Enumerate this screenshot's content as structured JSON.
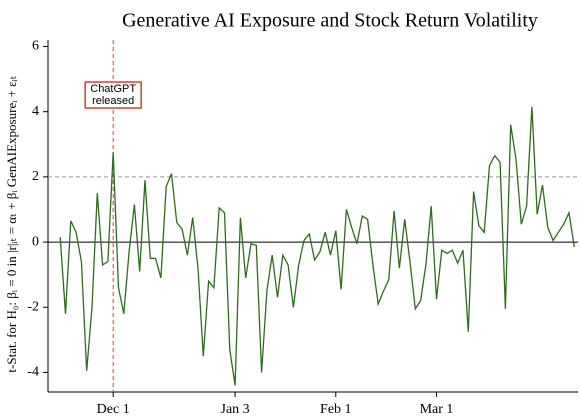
{
  "chart_data": {
    "type": "line",
    "title": "Generative AI Exposure and Stock Return Volatility",
    "y_label": "t-Stat. for H₀: βᵢ = 0  in  |r|ᵢₜ = αₜ + βᵢ GenAIExposureᵢ + εᵢₜ",
    "x": [
      0,
      1,
      2,
      3,
      4,
      5,
      6,
      7,
      8,
      9,
      10,
      11,
      12,
      13,
      14,
      15,
      16,
      17,
      18,
      19,
      20,
      21,
      22,
      23,
      24,
      25,
      26,
      27,
      28,
      29,
      30,
      31,
      32,
      33,
      34,
      35,
      36,
      37,
      38,
      39,
      40,
      41,
      42,
      43,
      44,
      45,
      46,
      47,
      48,
      49,
      50,
      51,
      52,
      53,
      54,
      55,
      56,
      57,
      58,
      59,
      60,
      61,
      62,
      63,
      64,
      65,
      66,
      67,
      68,
      69,
      70,
      71,
      72,
      73,
      74,
      75,
      76,
      77,
      78,
      79,
      80,
      81,
      82,
      83,
      84,
      85,
      86,
      87,
      88,
      89,
      90,
      91,
      92,
      93,
      94,
      95,
      96,
      97
    ],
    "series": [
      {
        "color": "#2f6b1e",
        "values": [
          0.15,
          -2.2,
          0.65,
          0.3,
          -0.6,
          -3.95,
          -2,
          1.5,
          -0.7,
          -0.6,
          2.75,
          -1.4,
          -2.2,
          -0.3,
          1.15,
          -0.9,
          1.9,
          -0.5,
          -0.5,
          -1.1,
          1.7,
          2.1,
          0.6,
          0.4,
          -0.4,
          0.75,
          -0.8,
          -3.5,
          -1.2,
          -1.4,
          1.05,
          0.9,
          -3.3,
          -4.4,
          0.75,
          -1.1,
          -0.05,
          -0.1,
          -4.0,
          -1.5,
          -0.4,
          -1.7,
          -0.4,
          -0.7,
          -2.0,
          -0.7,
          0.05,
          0.25,
          -0.55,
          -0.3,
          0.3,
          -0.4,
          0.35,
          -1.45,
          1.0,
          0.45,
          -0.05,
          0.8,
          0.7,
          -0.7,
          -1.9,
          -1.5,
          -1.15,
          0.95,
          -0.8,
          0.7,
          -0.6,
          -2.05,
          -1.8,
          -0.7,
          1.1,
          -1.75,
          -0.25,
          -0.35,
          -0.25,
          -0.65,
          -0.25,
          -2.75,
          1.55,
          0.5,
          0.3,
          2.35,
          2.65,
          2.45,
          -2.05,
          3.6,
          2.55,
          0.55,
          1.1,
          4.15,
          0.85,
          1.75,
          0.45,
          0.05,
          0.3,
          0.55,
          0.9,
          -0.15
        ]
      }
    ],
    "xlim": [
      -2.3,
      97.7
    ],
    "xticks": [
      {
        "value": 10,
        "label": "Dec 1"
      },
      {
        "value": 33,
        "label": "Jan 3"
      },
      {
        "value": 52,
        "label": "Feb 1"
      },
      {
        "value": 71,
        "label": "Mar 1"
      }
    ],
    "ylim": [
      -4.6,
      6.2
    ],
    "yticks": [
      -4,
      -2,
      0,
      2,
      4,
      6
    ],
    "hlines": [
      {
        "value": 0,
        "color": "#000000",
        "dashed": false
      },
      {
        "value": 2,
        "color": "#999999",
        "dashed": true
      }
    ],
    "vline": {
      "value": 10,
      "color": "#e03c31"
    },
    "annotation": [
      "ChatGPT",
      "released"
    ]
  }
}
